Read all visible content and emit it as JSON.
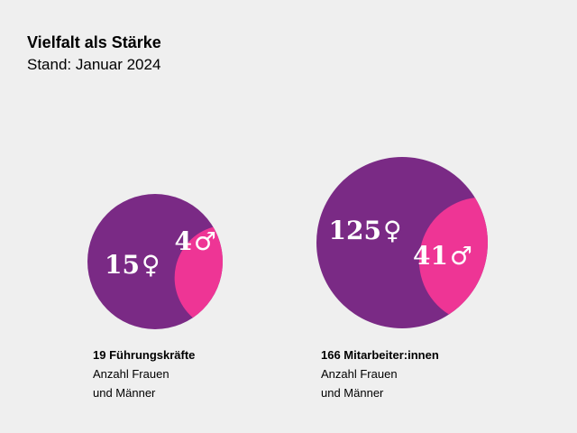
{
  "header": {
    "title": "Vielfalt als Stärke",
    "subtitle": "Stand: Januar 2024"
  },
  "colors": {
    "women": "#7a2a85",
    "men": "#ee3595",
    "background": "#efefef"
  },
  "symbols": {
    "women": "♀",
    "men": "♂"
  },
  "chart_data": [
    {
      "type": "pie",
      "total_label": "19 Führungskräfte",
      "caption_line1": "Anzahl Frauen",
      "caption_line2": "und Männer",
      "total": 19,
      "slices": [
        {
          "category": "women",
          "value": 15,
          "label": "15"
        },
        {
          "category": "men",
          "value": 4,
          "label": "4"
        }
      ]
    },
    {
      "type": "pie",
      "total_label": "166 Mitarbeiter:innen",
      "caption_line1": "Anzahl Frauen",
      "caption_line2": "und Männer",
      "total": 166,
      "slices": [
        {
          "category": "women",
          "value": 125,
          "label": "125"
        },
        {
          "category": "men",
          "value": 41,
          "label": "41"
        }
      ]
    }
  ]
}
